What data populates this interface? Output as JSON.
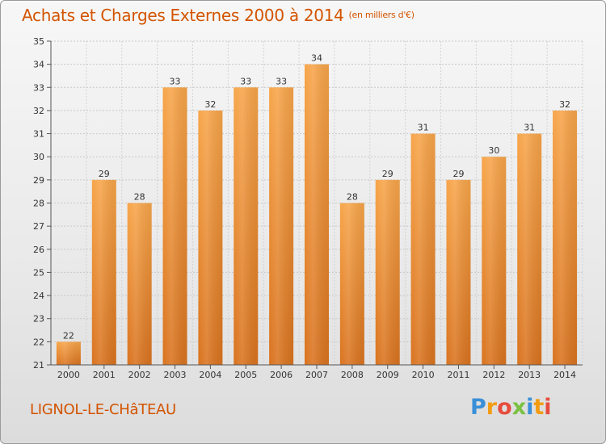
{
  "header": {
    "title": "Achats et Charges Externes 2000 à 2014",
    "subtitle": "(en milliers d'€)"
  },
  "footer": {
    "commune": "LIGNOL-LE-CHâTEAU",
    "logo_letters": [
      "P",
      "r",
      "o",
      "x",
      "i",
      "t",
      "i"
    ],
    "logo_colors": [
      "#3a8fd8",
      "#f39c12",
      "#e74c3c",
      "#7ac143",
      "#3a8fd8",
      "#f39c12",
      "#e74c3c"
    ]
  },
  "colors": {
    "bar_top": "#f7a54a",
    "bar_bottom": "#d9731f",
    "text": "#d35400"
  },
  "chart_data": {
    "type": "bar",
    "categories": [
      "2000",
      "2001",
      "2002",
      "2003",
      "2004",
      "2005",
      "2006",
      "2007",
      "2008",
      "2009",
      "2010",
      "2011",
      "2012",
      "2013",
      "2014"
    ],
    "values": [
      22,
      29,
      28,
      33,
      32,
      33,
      33,
      34,
      28,
      29,
      31,
      29,
      30,
      31,
      32
    ],
    "title": "Achats et Charges Externes 2000 à 2014",
    "ylim": [
      21,
      35
    ],
    "yticks": [
      21,
      22,
      23,
      24,
      25,
      26,
      27,
      28,
      29,
      30,
      31,
      32,
      33,
      34,
      35
    ],
    "grid": true,
    "legend": "none"
  }
}
